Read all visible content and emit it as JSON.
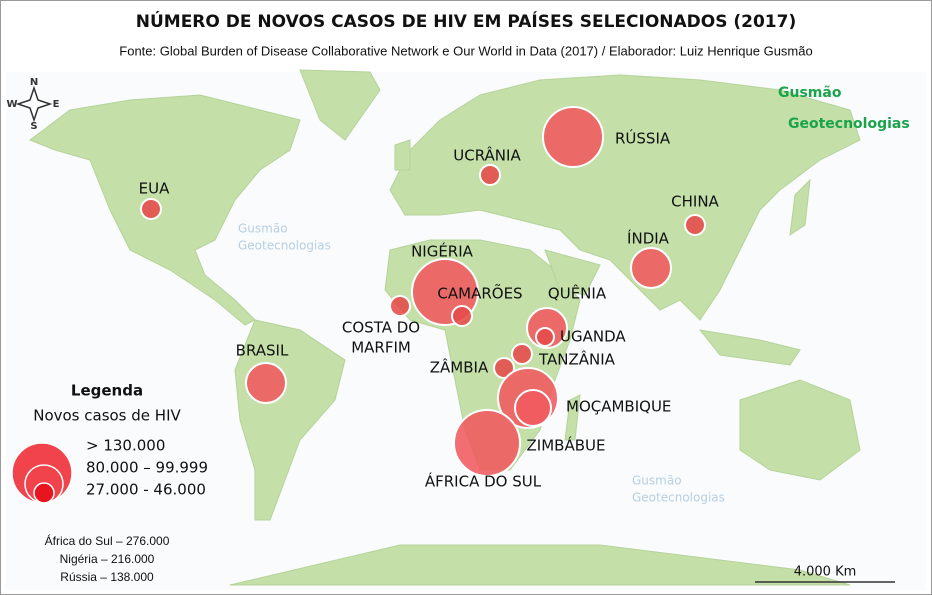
{
  "header": {
    "title": "NÚMERO DE NOVOS CASOS DE HIV EM PAÍSES SELECIONADOS (2017)",
    "source": "Fonte: Global Burden of Disease Collaborative Network e Our World in Data (2017) / Elaborador: Luiz Henrique Gusmão"
  },
  "logo": [
    "Gusmão",
    "Geotecnologias"
  ],
  "watermarks": [
    [
      "Gusmão",
      "Geotecnologias"
    ],
    [
      "Gusmão",
      "Geotecnologias"
    ]
  ],
  "compass": [
    "N",
    "E",
    "S",
    "W"
  ],
  "countries": [
    {
      "label": "EUA"
    },
    {
      "label": "UCRÂNIA"
    },
    {
      "label": "RÚSSIA"
    },
    {
      "label": "CHINA"
    },
    {
      "label": "ÍNDIA"
    },
    {
      "label": "NIGÉRIA"
    },
    {
      "label": "CAMARÕES"
    },
    {
      "label": "QUÊNIA"
    },
    {
      "label": "UGANDA"
    },
    {
      "label": [
        "COSTA DO",
        "MARFIM"
      ]
    },
    {
      "label": "BRASIL"
    },
    {
      "label": "TANZÂNIA"
    },
    {
      "label": "ZÂMBIA"
    },
    {
      "label": "MOÇAMBIQUE"
    },
    {
      "label": "ZIMBÁBUE"
    },
    {
      "label": "ÁFRICA DO SUL"
    }
  ],
  "legend": {
    "title": "Legenda",
    "subtitle": "Novos casos de HIV",
    "classes": [
      "> 130.000",
      "80.000 – 99.999",
      "27.000 - 46.000"
    ]
  },
  "notes": [
    "África do Sul – 276.000",
    "Nigéria – 216.000",
    "Rússia – 138.000"
  ],
  "scale": "4.000 Km"
}
